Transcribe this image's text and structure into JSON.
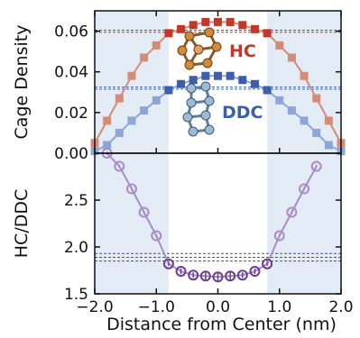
{
  "chart_data": [
    {
      "type": "line",
      "ylabel": "Cage Density",
      "xlim": [
        -2.0,
        2.0
      ],
      "ylim": [
        0.0,
        0.07
      ],
      "yticks": [
        "0.00",
        "0.02",
        "0.04",
        "0.06"
      ],
      "shaded_x_ranges": [
        [
          -2.0,
          -0.8
        ],
        [
          0.8,
          2.0
        ]
      ],
      "x": [
        -2.0,
        -1.8,
        -1.6,
        -1.4,
        -1.2,
        -1.0,
        -0.8,
        -0.6,
        -0.4,
        -0.2,
        0.0,
        0.2,
        0.4,
        0.6,
        0.8,
        1.0,
        1.2,
        1.4,
        1.6,
        1.8,
        2.0
      ],
      "series": [
        {
          "name": "HC",
          "color": "#c0392b",
          "line_color": "#d48c78",
          "values": [
            0.005,
            0.016,
            0.027,
            0.038,
            0.047,
            0.053,
            0.059,
            0.061,
            0.063,
            0.0645,
            0.0645,
            0.0645,
            0.063,
            0.061,
            0.059,
            0.053,
            0.047,
            0.038,
            0.027,
            0.016,
            0.005
          ],
          "bulk_lines": [
            0.0595,
            0.0605
          ],
          "labeled_points_solid_from": -0.8
        },
        {
          "name": "DDC",
          "color": "#3c5fa8",
          "line_color": "#8ea6d6",
          "values": [
            0.001,
            0.004,
            0.01,
            0.016,
            0.021,
            0.026,
            0.031,
            0.034,
            0.036,
            0.038,
            0.038,
            0.038,
            0.036,
            0.034,
            0.031,
            0.026,
            0.021,
            0.016,
            0.01,
            0.004,
            0.001
          ],
          "bulk_lines": [
            0.0315,
            0.0325
          ],
          "labeled_points_solid_from": -0.8
        }
      ]
    },
    {
      "type": "line",
      "ylabel": "HC/DDC",
      "xlabel": "Distance from Center (nm)",
      "xlim": [
        -2.0,
        2.0
      ],
      "ylim": [
        1.5,
        3.0
      ],
      "xticks": [
        "−2.0",
        "−1.0",
        "0.0",
        "1.0",
        "2.0"
      ],
      "yticks": [
        "1.5",
        "2.0",
        "2.5"
      ],
      "shaded_x_ranges": [
        [
          -2.0,
          -0.8
        ],
        [
          0.8,
          2.0
        ]
      ],
      "x": [
        -1.8,
        -1.6,
        -1.4,
        -1.2,
        -1.0,
        -0.8,
        -0.6,
        -0.4,
        -0.2,
        0.0,
        0.2,
        0.4,
        0.6,
        0.8,
        1.0,
        1.2,
        1.4,
        1.6
      ],
      "series": [
        {
          "color": "#6b3d8f",
          "line_color": "#a88cc6",
          "values": [
            3.0,
            2.86,
            2.62,
            2.37,
            2.12,
            1.82,
            1.74,
            1.7,
            1.69,
            1.68,
            1.69,
            1.7,
            1.74,
            1.82,
            2.12,
            2.37,
            2.62,
            2.86
          ],
          "error": [
            0.02,
            0.02,
            0.02,
            0.02,
            0.02,
            0.02,
            0.03,
            0.03,
            0.04,
            0.04,
            0.04,
            0.03,
            0.03,
            0.02,
            0.02,
            0.02,
            0.02,
            0.02
          ],
          "bulk_lines": [
            1.85,
            1.89,
            1.93
          ]
        }
      ]
    }
  ]
}
